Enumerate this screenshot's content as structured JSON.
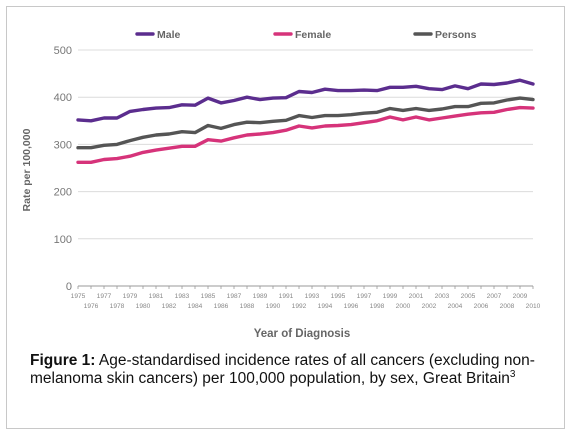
{
  "chart_data": {
    "type": "line",
    "xlabel": "Year of Diagnosis",
    "ylabel": "Rate per 100,000",
    "ylim": [
      0,
      500
    ],
    "yticks": [
      0,
      100,
      200,
      300,
      400,
      500
    ],
    "xlim": [
      1975,
      2010
    ],
    "x_tick_labels_top": [
      "1975",
      "1977",
      "1979",
      "1981",
      "1983",
      "1985",
      "1987",
      "1989",
      "1991",
      "1993",
      "1995",
      "1997",
      "1999",
      "2001",
      "2003",
      "2005",
      "2007",
      "2009"
    ],
    "x_tick_labels_bottom": [
      "1976",
      "1978",
      "1980",
      "1982",
      "1984",
      "1986",
      "1988",
      "1990",
      "1992",
      "1994",
      "1996",
      "1998",
      "2000",
      "2002",
      "2004",
      "2006",
      "2008",
      "2010"
    ],
    "grid": "horizontal",
    "legend_position": "top",
    "x": [
      1975,
      1976,
      1977,
      1978,
      1979,
      1980,
      1981,
      1982,
      1983,
      1984,
      1985,
      1986,
      1987,
      1988,
      1989,
      1990,
      1991,
      1992,
      1993,
      1994,
      1995,
      1996,
      1997,
      1998,
      1999,
      2000,
      2001,
      2002,
      2003,
      2004,
      2005,
      2006,
      2007,
      2008,
      2009,
      2010
    ],
    "series": [
      {
        "name": "Male",
        "color": "#5b2d8e",
        "values": [
          352,
          350,
          356,
          356,
          370,
          374,
          377,
          378,
          384,
          383,
          398,
          388,
          393,
          400,
          395,
          398,
          399,
          412,
          410,
          417,
          414,
          414,
          415,
          414,
          421,
          421,
          423,
          418,
          416,
          424,
          418,
          428,
          427,
          430,
          436,
          428
        ]
      },
      {
        "name": "Female",
        "color": "#d6337a",
        "values": [
          262,
          262,
          268,
          270,
          275,
          283,
          288,
          292,
          296,
          296,
          310,
          307,
          314,
          320,
          322,
          325,
          330,
          339,
          335,
          339,
          340,
          342,
          346,
          350,
          358,
          352,
          358,
          352,
          356,
          360,
          364,
          367,
          368,
          374,
          378,
          377
        ]
      },
      {
        "name": "Persons",
        "color": "#555555",
        "values": [
          293,
          293,
          298,
          300,
          308,
          315,
          320,
          322,
          327,
          325,
          340,
          334,
          342,
          347,
          346,
          349,
          351,
          361,
          357,
          361,
          361,
          363,
          366,
          368,
          376,
          372,
          376,
          372,
          375,
          380,
          380,
          387,
          388,
          394,
          398,
          395
        ]
      }
    ]
  },
  "caption": {
    "label": "Figure 1:",
    "text": "Age-standardised incidence rates of all cancers (excluding non-melanoma skin cancers) per 100,000 population, by sex, Great Britain",
    "superscript": "3"
  }
}
